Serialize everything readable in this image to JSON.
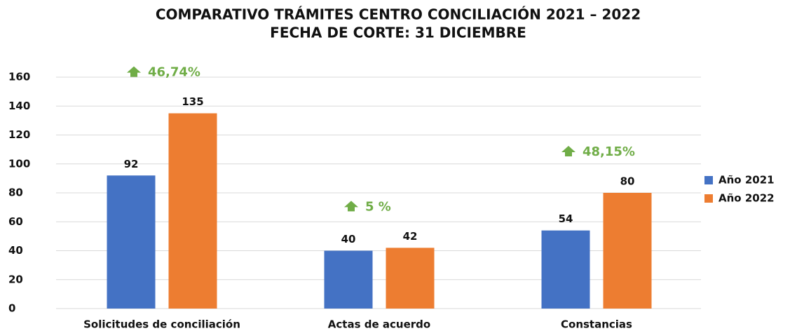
{
  "chart_data": {
    "type": "bar",
    "title": "COMPARATIVO TRÁMITES CENTRO CONCILIACIÓN 2021 – 2022",
    "subtitle": "FECHA DE CORTE: 31 DICIEMBRE",
    "categories": [
      "Solicitudes de conciliación",
      "Actas de acuerdo",
      "Constancias"
    ],
    "series": [
      {
        "name": "Año 2021",
        "color": "#4472c4",
        "values": [
          92,
          40,
          54
        ]
      },
      {
        "name": "Año 2022",
        "color": "#ed7d31",
        "values": [
          135,
          42,
          80
        ]
      }
    ],
    "annotations": [
      "46,74%",
      "5 %",
      "48,15%"
    ],
    "annotation_color": "#70ad47",
    "ylim": [
      0,
      160
    ],
    "yticks": [
      0,
      20,
      40,
      60,
      80,
      100,
      120,
      140,
      160
    ],
    "grid": true,
    "legend": "right"
  }
}
